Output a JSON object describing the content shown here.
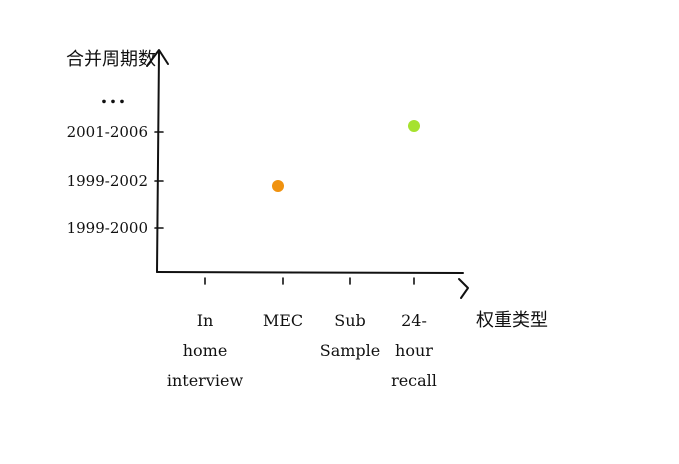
{
  "chart_data": {
    "type": "scatter",
    "title": "",
    "xlabel": "权重类型",
    "ylabel": "合并周期数",
    "categories": [
      {
        "lines": [
          "In",
          "home",
          "interview"
        ]
      },
      {
        "lines": [
          "MEC"
        ]
      },
      {
        "lines": [
          "Sub",
          "Sample"
        ]
      },
      {
        "lines": [
          "24-",
          "hour",
          "recall"
        ]
      }
    ],
    "y_ticks": [
      "1999-2000",
      "1999-2002",
      "2001-2006",
      "..."
    ],
    "points": [
      {
        "x": "MEC",
        "y": "1999-2002",
        "color": "#f0920f"
      },
      {
        "x": "24-hour recall",
        "y": "2001-2006",
        "color": "#a6e22e"
      }
    ],
    "grid": false,
    "legend": "none"
  }
}
